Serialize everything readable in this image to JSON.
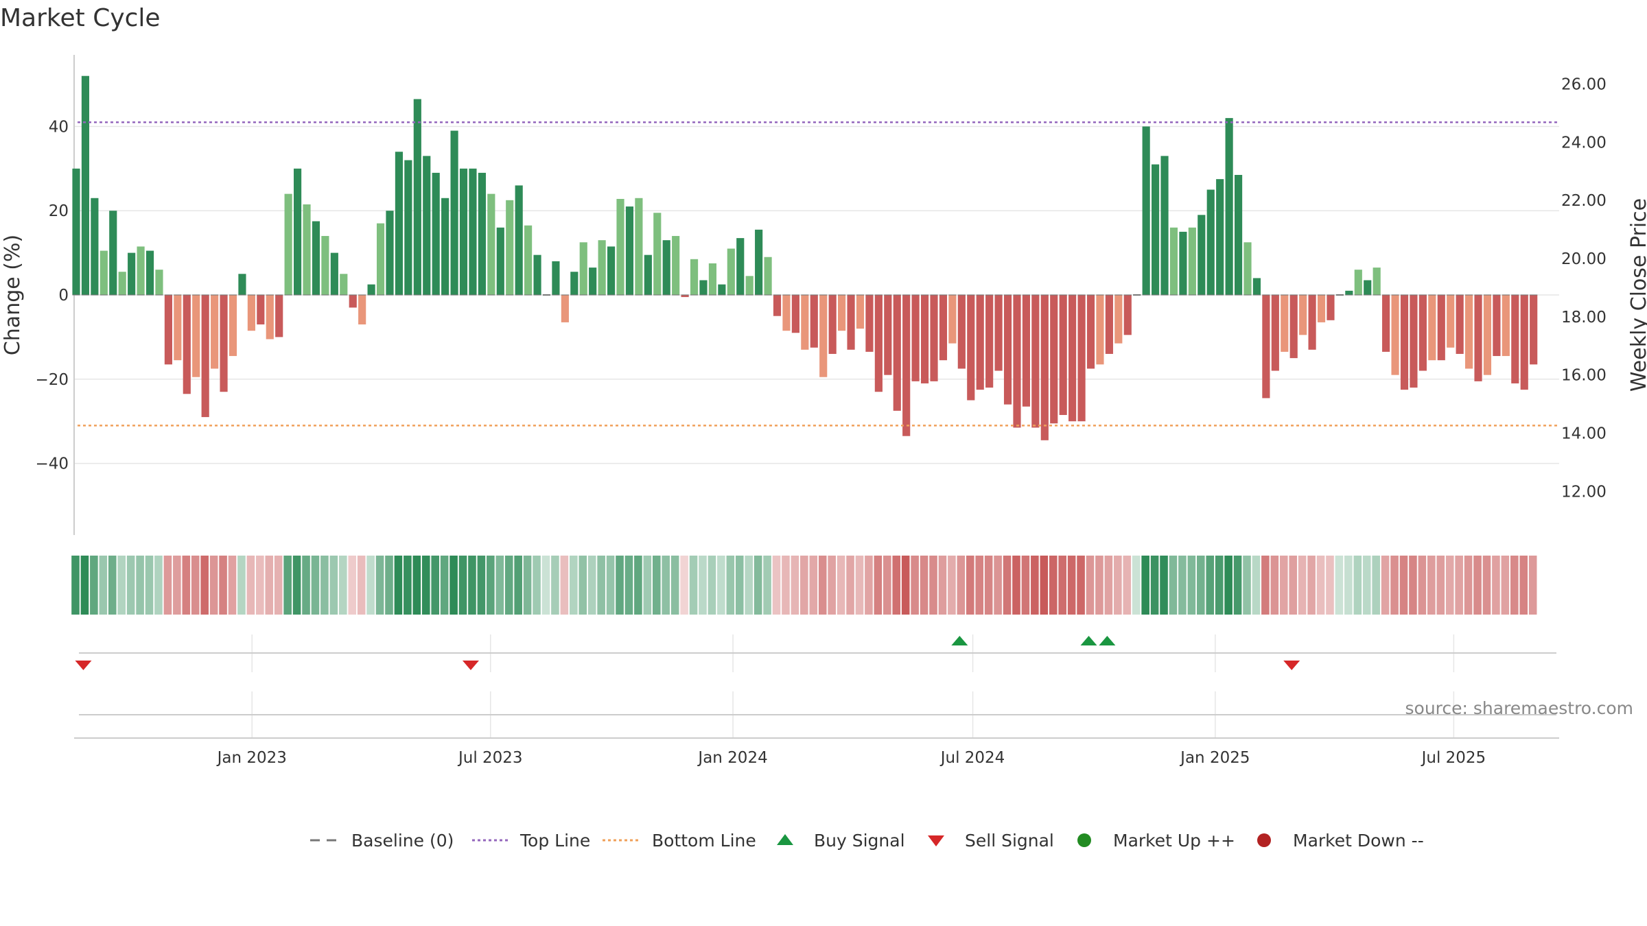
{
  "chart_data": {
    "type": "bar",
    "title": "Market Cycle",
    "ylabel_left": "Change (%)",
    "ylabel_right": "Weekly Close Price",
    "ylim_left": [
      -57,
      57
    ],
    "yticks_left": [
      -40,
      -20,
      0,
      20,
      40
    ],
    "yticks_left_labels": [
      "−40",
      "−20",
      "0",
      "20",
      "40"
    ],
    "ylim_right": [
      10.5,
      27.0
    ],
    "yticks_right": [
      "12.00",
      "14.00",
      "16.00",
      "18.00",
      "20.00",
      "22.00",
      "24.00",
      "26.00"
    ],
    "top_line": 41,
    "bottom_line": -31,
    "x_start": "2022-08-19",
    "x_end": "2025-09-19",
    "x_ticks": [
      {
        "date": "2023-01-01",
        "label": "Jan 2023"
      },
      {
        "date": "2023-07-01",
        "label": "Jul 2023"
      },
      {
        "date": "2024-01-01",
        "label": "Jan 2024"
      },
      {
        "date": "2024-07-01",
        "label": "Jul 2024"
      },
      {
        "date": "2025-01-01",
        "label": "Jan 2025"
      },
      {
        "date": "2025-07-01",
        "label": "Jul 2025"
      }
    ],
    "first_bar_date": "2022-08-19",
    "bar_interval_days": 7,
    "values": [
      30,
      52,
      23,
      10.5,
      20,
      5.5,
      10,
      11.5,
      10.5,
      6,
      -16.5,
      -15.5,
      -23.5,
      -19.5,
      -29,
      -17.5,
      -23,
      -14.5,
      5,
      -8.5,
      -7,
      -10.5,
      -10,
      24,
      30,
      21.5,
      17.5,
      14,
      10,
      5,
      -3,
      -7,
      2.5,
      17,
      20,
      34,
      32,
      46.5,
      33,
      29,
      23,
      39,
      30,
      30,
      29,
      24,
      16,
      22.5,
      26,
      16.5,
      9.5,
      0,
      8,
      -6.5,
      5.5,
      12.5,
      6.5,
      13,
      11.5,
      22.8,
      21,
      23,
      9.5,
      19.5,
      13,
      14,
      -0.5,
      8.5,
      3.5,
      7.5,
      2.5,
      11,
      13.5,
      4.5,
      15.5,
      9,
      -5,
      -8.5,
      -9,
      -13,
      -12.5,
      -19.5,
      -14,
      -8.5,
      -13,
      -8,
      -13.5,
      -23,
      -19,
      -27.5,
      -33.5,
      -20.5,
      -21,
      -20.5,
      -15.5,
      -11.5,
      -17.5,
      -25,
      -22.5,
      -22,
      -18,
      -26,
      -31.5,
      -26.5,
      -31.5,
      -34.5,
      -30.5,
      -28.5,
      -30,
      -30,
      -17.5,
      -16.5,
      -14,
      -11.5,
      -9.5,
      0,
      40,
      31,
      33,
      16,
      15,
      16,
      19,
      25,
      27.5,
      42,
      28.5,
      12.5,
      4,
      -24.5,
      -18,
      -13.5,
      -15,
      -9.5,
      -13,
      -6.5,
      -6,
      0,
      1,
      6,
      3.5,
      6.5,
      -13.5,
      -19,
      -22.5,
      -22,
      -18,
      -15.5,
      -15.5,
      -12.5,
      -14,
      -17.5,
      -20.5,
      -19,
      -14.5,
      -14.5,
      -21,
      -22.5,
      -16.5
    ],
    "colors": {
      "up_strong": "#2e8b57",
      "up_light": "#7ebf7e",
      "down_strong": "#c85a5a",
      "down_light": "#e9967a",
      "top_line": "#9467bd",
      "bottom_line": "#f0a05a",
      "baseline": "#777777",
      "buy": "#1a9641",
      "sell": "#d62728",
      "market_up": "#228b22",
      "market_down": "#b22222",
      "grid": "#e6e6e6"
    },
    "sell_signals": [
      "2022-08-26",
      "2023-06-16",
      "2025-02-28"
    ],
    "buy_signals": [
      "2024-06-21",
      "2024-09-27",
      "2024-10-11"
    ],
    "source": "source: sharemaestro.com",
    "legend": [
      {
        "type": "dash",
        "label": "Baseline (0)"
      },
      {
        "type": "dot-purple",
        "label": "Top Line"
      },
      {
        "type": "dot-orange",
        "label": "Bottom Line"
      },
      {
        "type": "tri-up",
        "label": "Buy Signal"
      },
      {
        "type": "tri-down",
        "label": "Sell Signal"
      },
      {
        "type": "circle-green",
        "label": "Market Up ++"
      },
      {
        "type": "circle-red",
        "label": "Market Down --"
      }
    ]
  }
}
